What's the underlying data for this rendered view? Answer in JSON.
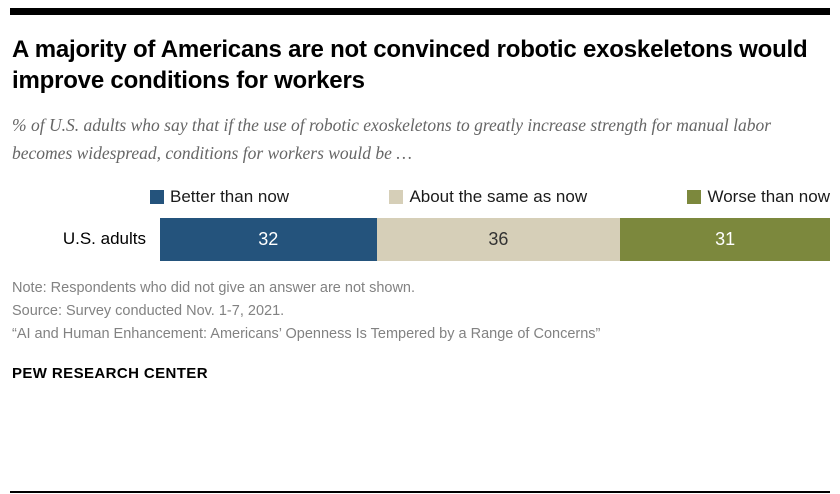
{
  "header": {
    "title": "A majority of Americans are not convinced robotic exoskeletons would improve conditions for workers",
    "subtitle": "% of U.S. adults who say that if the use of robotic exoskeletons to greatly increase strength for manual labor becomes widespread, conditions for workers would be …"
  },
  "chart_data": {
    "type": "bar",
    "variant": "horizontal-stacked",
    "categories": [
      "U.S. adults"
    ],
    "series": [
      {
        "name": "Better than now",
        "values": [
          32
        ],
        "color": "#24537C",
        "value_text_color": "#ffffff"
      },
      {
        "name": "About the same as now",
        "values": [
          36
        ],
        "color": "#D6CFB8",
        "value_text_color": "#333333"
      },
      {
        "name": "Worse than now",
        "values": [
          31
        ],
        "color": "#7C883D",
        "value_text_color": "#ffffff"
      }
    ],
    "legend_position": "top",
    "xlim": [
      0,
      99
    ],
    "grid": false
  },
  "footer": {
    "note": "Note: Respondents who did not give an answer are not shown.",
    "source": "Source: Survey conducted Nov. 1-7, 2021.",
    "report": "“AI and Human Enhancement: Americans’ Openness Is Tempered by a Range of Concerns”",
    "brand": "PEW RESEARCH CENTER"
  }
}
